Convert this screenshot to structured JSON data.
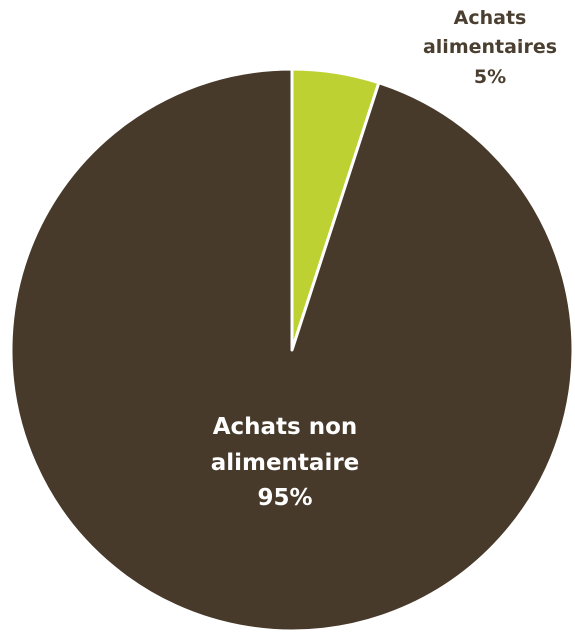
{
  "chart_data": {
    "type": "pie",
    "categories": [
      "Achats alimentaires",
      "Achats non alimentaire"
    ],
    "values": [
      5,
      95
    ],
    "value_labels": [
      "5%",
      "95%"
    ],
    "colors": [
      "#bdd232",
      "#473a2a"
    ],
    "label_colors": [
      "#4a3f30",
      "#ffffff"
    ]
  }
}
